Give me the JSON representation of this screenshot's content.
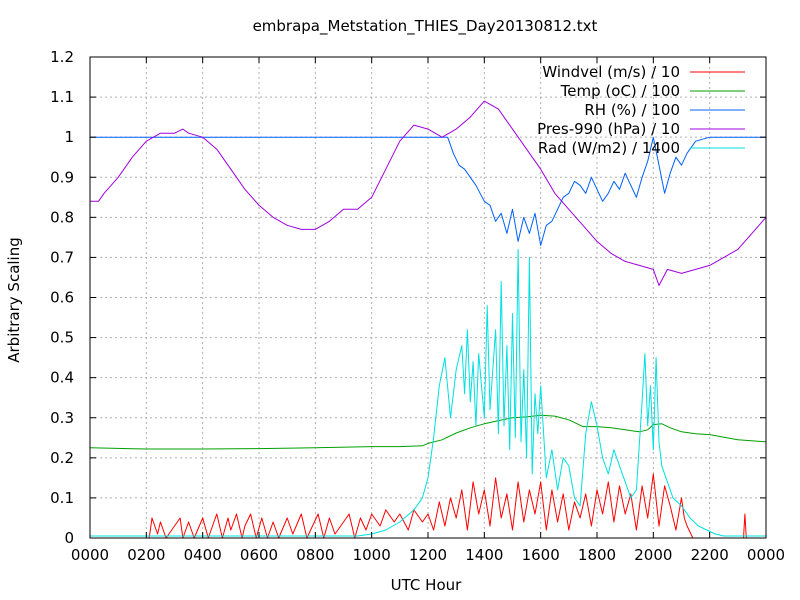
{
  "chart_data": {
    "type": "line",
    "title": "embrapa_Metstation_THIES_Day20130812.txt",
    "xlabel": "UTC Hour",
    "ylabel": "Arbitrary Scaling",
    "xlim": [
      0,
      24
    ],
    "ylim": [
      0,
      1.2
    ],
    "grid": true,
    "legend_position": "top-right",
    "x_ticks": [
      {
        "value": 0,
        "label": "0000"
      },
      {
        "value": 2,
        "label": "0200"
      },
      {
        "value": 4,
        "label": "0400"
      },
      {
        "value": 6,
        "label": "0600"
      },
      {
        "value": 8,
        "label": "0800"
      },
      {
        "value": 10,
        "label": "1000"
      },
      {
        "value": 12,
        "label": "1200"
      },
      {
        "value": 14,
        "label": "1400"
      },
      {
        "value": 16,
        "label": "1600"
      },
      {
        "value": 18,
        "label": "1800"
      },
      {
        "value": 20,
        "label": "2000"
      },
      {
        "value": 22,
        "label": "2200"
      },
      {
        "value": 24,
        "label": "0000"
      }
    ],
    "y_ticks": [
      {
        "value": 0,
        "label": "0"
      },
      {
        "value": 0.1,
        "label": "0.1"
      },
      {
        "value": 0.2,
        "label": "0.2"
      },
      {
        "value": 0.3,
        "label": "0.3"
      },
      {
        "value": 0.4,
        "label": "0.4"
      },
      {
        "value": 0.5,
        "label": "0.5"
      },
      {
        "value": 0.6,
        "label": "0.6"
      },
      {
        "value": 0.7,
        "label": "0.7"
      },
      {
        "value": 0.8,
        "label": "0.8"
      },
      {
        "value": 0.9,
        "label": "0.9"
      },
      {
        "value": 1.0,
        "label": "1"
      },
      {
        "value": 1.1,
        "label": "1.1"
      },
      {
        "value": 1.2,
        "label": "1.2"
      }
    ],
    "series": [
      {
        "name": "Windvel (m/s) / 10",
        "color": "#ff0000",
        "x": [
          0,
          2.1,
          2.2,
          2.4,
          2.5,
          2.7,
          3.0,
          3.2,
          3.3,
          3.5,
          3.7,
          4.0,
          4.2,
          4.4,
          4.5,
          4.7,
          4.9,
          5.0,
          5.2,
          5.4,
          5.5,
          5.7,
          5.9,
          6.1,
          6.3,
          6.5,
          6.7,
          7.0,
          7.2,
          7.5,
          7.7,
          7.9,
          8.1,
          8.3,
          8.5,
          8.7,
          9.0,
          9.2,
          9.4,
          9.6,
          9.8,
          10.0,
          10.3,
          10.5,
          10.8,
          11.0,
          11.3,
          11.5,
          11.8,
          12.0,
          12.2,
          12.4,
          12.6,
          12.8,
          13.0,
          13.2,
          13.4,
          13.6,
          13.8,
          14.0,
          14.2,
          14.4,
          14.6,
          14.8,
          15.0,
          15.2,
          15.4,
          15.6,
          15.8,
          16.0,
          16.2,
          16.4,
          16.6,
          16.8,
          17.0,
          17.2,
          17.4,
          17.6,
          17.8,
          18.0,
          18.2,
          18.4,
          18.6,
          18.8,
          19.0,
          19.2,
          19.4,
          19.6,
          19.8,
          20.0,
          20.2,
          20.4,
          20.6,
          20.8,
          21.0,
          21.1,
          21.2,
          21.4,
          21.6,
          22.0,
          22.5,
          23.0,
          23.2,
          23.25,
          23.3,
          23.4,
          24.0
        ],
        "y": [
          0,
          0,
          0.05,
          0.01,
          0.04,
          0.0,
          0.03,
          0.05,
          0.0,
          0.04,
          0.0,
          0.05,
          0.0,
          0.04,
          0.06,
          0.0,
          0.05,
          0.02,
          0.06,
          0.0,
          0.03,
          0.06,
          0.0,
          0.05,
          0.0,
          0.04,
          0.0,
          0.05,
          0.01,
          0.06,
          0.0,
          0.03,
          0.06,
          0.0,
          0.05,
          0.01,
          0.04,
          0.06,
          0.0,
          0.05,
          0.02,
          0.06,
          0.03,
          0.07,
          0.04,
          0.06,
          0.02,
          0.07,
          0.04,
          0.06,
          0.02,
          0.09,
          0.03,
          0.1,
          0.05,
          0.12,
          0.02,
          0.14,
          0.06,
          0.12,
          0.03,
          0.15,
          0.05,
          0.11,
          0.02,
          0.14,
          0.04,
          0.12,
          0.06,
          0.14,
          0.02,
          0.12,
          0.04,
          0.11,
          0.02,
          0.09,
          0.05,
          0.11,
          0.03,
          0.12,
          0.06,
          0.14,
          0.04,
          0.13,
          0.06,
          0.11,
          0.02,
          0.13,
          0.05,
          0.16,
          0.03,
          0.13,
          0.08,
          0.02,
          0.1,
          0.05,
          0.03,
          0.0,
          0.0,
          0.0,
          0.0,
          0.0,
          0.0,
          0.06,
          0.0,
          0.0,
          0.0
        ]
      },
      {
        "name": "Temp (oC) / 100",
        "color": "#00a000",
        "x": [
          0,
          2,
          4,
          6,
          8,
          10,
          11,
          11.8,
          12,
          12.5,
          13,
          13.5,
          14,
          14.5,
          15,
          15.5,
          16,
          16.5,
          17,
          17.5,
          18,
          18.5,
          19,
          19.5,
          19.8,
          20,
          20.3,
          20.6,
          21,
          21.5,
          22,
          23,
          24
        ],
        "y": [
          0.225,
          0.222,
          0.222,
          0.223,
          0.225,
          0.228,
          0.228,
          0.23,
          0.236,
          0.245,
          0.262,
          0.275,
          0.285,
          0.293,
          0.3,
          0.302,
          0.306,
          0.304,
          0.295,
          0.278,
          0.278,
          0.275,
          0.27,
          0.265,
          0.27,
          0.283,
          0.285,
          0.275,
          0.265,
          0.26,
          0.258,
          0.245,
          0.24
        ]
      },
      {
        "name": "RH (%) / 100",
        "color": "#0060ff",
        "x": [
          0,
          12,
          12.7,
          12.9,
          13.1,
          13.3,
          13.5,
          13.7,
          14.0,
          14.2,
          14.4,
          14.6,
          14.8,
          15.0,
          15.2,
          15.4,
          15.6,
          15.8,
          16.0,
          16.2,
          16.4,
          16.6,
          16.8,
          17.0,
          17.2,
          17.4,
          17.6,
          17.8,
          18.0,
          18.2,
          18.4,
          18.6,
          18.8,
          19.0,
          19.2,
          19.4,
          19.6,
          19.8,
          20.0,
          20.2,
          20.4,
          20.6,
          20.8,
          21.0,
          21.2,
          21.5,
          22.0,
          23.0,
          24.0
        ],
        "y": [
          1.0,
          1.0,
          1.0,
          0.96,
          0.93,
          0.92,
          0.9,
          0.88,
          0.84,
          0.83,
          0.79,
          0.81,
          0.76,
          0.82,
          0.74,
          0.8,
          0.76,
          0.81,
          0.73,
          0.78,
          0.79,
          0.82,
          0.85,
          0.86,
          0.89,
          0.88,
          0.86,
          0.9,
          0.87,
          0.84,
          0.86,
          0.89,
          0.87,
          0.91,
          0.88,
          0.85,
          0.9,
          0.94,
          1.0,
          0.93,
          0.86,
          0.91,
          0.95,
          0.93,
          0.96,
          0.99,
          1.0,
          1.0,
          1.0
        ]
      },
      {
        "name": "Pres-990 (hPa) / 10",
        "color": "#a000e0",
        "x": [
          0,
          0.3,
          0.5,
          1,
          1.5,
          2,
          2.5,
          3,
          3.3,
          3.5,
          4,
          4.5,
          5,
          5.5,
          6,
          6.5,
          7,
          7.5,
          8,
          8.5,
          9,
          9.5,
          10,
          10.5,
          11,
          11.5,
          12,
          12.5,
          13,
          13.5,
          14,
          14.5,
          15,
          15.5,
          16,
          16.5,
          17,
          17.5,
          18,
          18.5,
          19,
          19.5,
          20,
          20.2,
          20.5,
          21,
          21.5,
          22,
          22.5,
          23,
          23.5,
          24
        ],
        "y": [
          0.84,
          0.84,
          0.86,
          0.9,
          0.95,
          0.99,
          1.01,
          1.01,
          1.02,
          1.01,
          1.0,
          0.97,
          0.92,
          0.87,
          0.83,
          0.8,
          0.78,
          0.77,
          0.77,
          0.79,
          0.82,
          0.82,
          0.85,
          0.92,
          0.99,
          1.03,
          1.02,
          1.0,
          1.02,
          1.05,
          1.09,
          1.07,
          1.02,
          0.97,
          0.92,
          0.86,
          0.82,
          0.78,
          0.74,
          0.71,
          0.69,
          0.68,
          0.67,
          0.63,
          0.67,
          0.66,
          0.67,
          0.68,
          0.7,
          0.72,
          0.76,
          0.8
        ]
      },
      {
        "name": "Rad (W/m2) / 1400",
        "color": "#00e0e0",
        "x": [
          0,
          9.5,
          10,
          10.5,
          11,
          11.5,
          11.8,
          12.0,
          12.2,
          12.4,
          12.6,
          12.8,
          13.0,
          13.2,
          13.3,
          13.4,
          13.5,
          13.6,
          13.7,
          13.8,
          14.0,
          14.1,
          14.2,
          14.4,
          14.5,
          14.6,
          14.7,
          14.8,
          14.9,
          15.0,
          15.1,
          15.2,
          15.3,
          15.4,
          15.5,
          15.6,
          15.7,
          15.8,
          15.9,
          16.0,
          16.2,
          16.4,
          16.6,
          16.8,
          17.0,
          17.2,
          17.4,
          17.6,
          17.8,
          18.0,
          18.2,
          18.4,
          18.6,
          18.8,
          19.0,
          19.2,
          19.4,
          19.6,
          19.7,
          19.8,
          19.9,
          20.0,
          20.1,
          20.2,
          20.3,
          20.5,
          20.7,
          21.0,
          21.3,
          21.6,
          21.9,
          22.2,
          22.5,
          24.0
        ],
        "y": [
          0.005,
          0.005,
          0.01,
          0.02,
          0.04,
          0.07,
          0.1,
          0.15,
          0.25,
          0.38,
          0.45,
          0.3,
          0.42,
          0.48,
          0.36,
          0.52,
          0.34,
          0.44,
          0.28,
          0.46,
          0.3,
          0.58,
          0.32,
          0.52,
          0.26,
          0.64,
          0.28,
          0.48,
          0.22,
          0.56,
          0.25,
          0.72,
          0.24,
          0.42,
          0.2,
          0.7,
          0.16,
          0.36,
          0.26,
          0.38,
          0.15,
          0.22,
          0.12,
          0.2,
          0.18,
          0.1,
          0.08,
          0.26,
          0.34,
          0.28,
          0.2,
          0.16,
          0.22,
          0.18,
          0.14,
          0.1,
          0.12,
          0.34,
          0.46,
          0.28,
          0.38,
          0.22,
          0.45,
          0.24,
          0.18,
          0.14,
          0.1,
          0.08,
          0.05,
          0.03,
          0.02,
          0.01,
          0.005,
          0.005
        ]
      }
    ]
  }
}
